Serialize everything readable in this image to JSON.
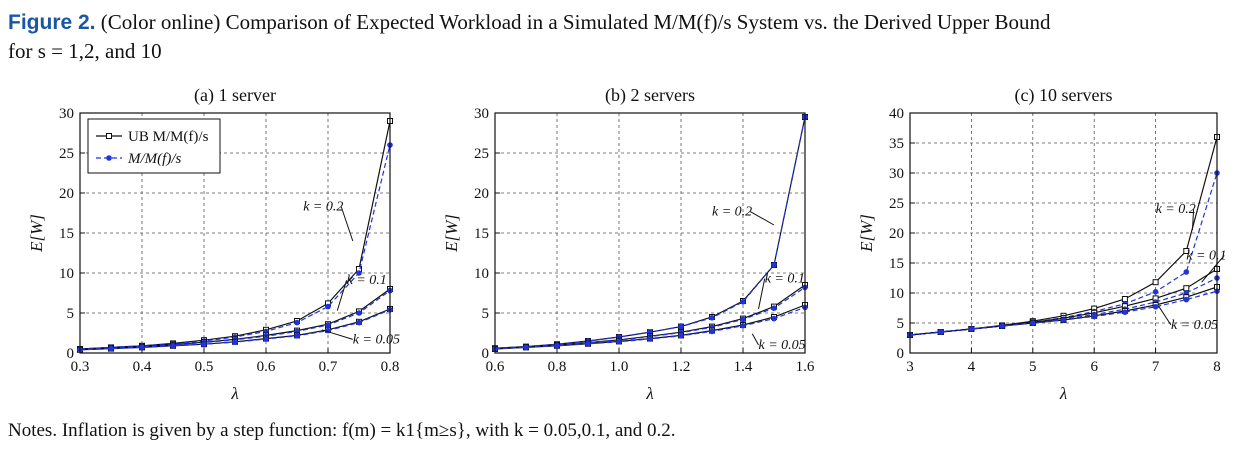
{
  "caption": {
    "figure_label": "Figure 2.",
    "text_line1": " (Color online) Comparison of Expected Workload in a Simulated M/M(f)/s System vs. the Derived Upper Bound",
    "text_line2": "for s = 1,2, and 10"
  },
  "notes": "Notes. Inflation is given by a step function: f(m) = k1{m≥s}, with k = 0.05,0.1, and 0.2.",
  "colors": {
    "ub": "#111111",
    "sim": "#2233dd",
    "grid": "#555555"
  },
  "chart_data": [
    {
      "type": "line",
      "title": "(a) 1 server",
      "xlabel": "λ",
      "ylabel": "E[W]",
      "xlim": [
        0.3,
        0.8
      ],
      "ylim": [
        0,
        30
      ],
      "xticks": [
        0.3,
        0.4,
        0.5,
        0.6,
        0.7,
        0.8
      ],
      "xtick_labels": [
        "0.3",
        "0.4",
        "0.5",
        "0.6",
        "0.7",
        "0.8"
      ],
      "yticks": [
        0,
        5,
        10,
        15,
        20,
        25,
        30
      ],
      "ytick_labels": [
        "0",
        "5",
        "10",
        "15",
        "20",
        "25",
        "30"
      ],
      "grid": true,
      "legend": {
        "position": "top-left",
        "entries": [
          "UB M/M(f)/s",
          "M/M(f)/s"
        ]
      },
      "x": [
        0.3,
        0.35,
        0.4,
        0.45,
        0.5,
        0.55,
        0.6,
        0.65,
        0.7,
        0.75,
        0.8
      ],
      "series": [
        {
          "name": "UB M/M(f)/s",
          "k": "0.2",
          "style": "ub",
          "values": [
            0.5,
            0.7,
            0.9,
            1.2,
            1.6,
            2.1,
            2.9,
            4.0,
            6.2,
            10.5,
            29.0
          ]
        },
        {
          "name": "M/M(f)/s",
          "k": "0.2",
          "style": "sim",
          "values": [
            0.5,
            0.7,
            0.9,
            1.15,
            1.5,
            2.0,
            2.7,
            3.8,
            5.8,
            10.0,
            26.0
          ]
        },
        {
          "name": "UB M/M(f)/s",
          "k": "0.1",
          "style": "ub",
          "values": [
            0.45,
            0.6,
            0.8,
            1.05,
            1.35,
            1.7,
            2.2,
            2.8,
            3.6,
            5.2,
            8.0
          ]
        },
        {
          "name": "M/M(f)/s",
          "k": "0.1",
          "style": "sim",
          "values": [
            0.45,
            0.6,
            0.8,
            1.0,
            1.3,
            1.65,
            2.1,
            2.7,
            3.5,
            5.0,
            7.8
          ]
        },
        {
          "name": "UB M/M(f)/s",
          "k": "0.05",
          "style": "ub",
          "values": [
            0.4,
            0.55,
            0.7,
            0.9,
            1.1,
            1.4,
            1.8,
            2.2,
            2.9,
            3.9,
            5.5
          ]
        },
        {
          "name": "M/M(f)/s",
          "k": "0.05",
          "style": "sim",
          "values": [
            0.4,
            0.55,
            0.7,
            0.9,
            1.1,
            1.35,
            1.75,
            2.15,
            2.8,
            3.8,
            5.4
          ]
        }
      ],
      "annotations": [
        {
          "text": "k = 0.2",
          "x": 0.66,
          "y": 17.8,
          "ax": 0.74,
          "ay": 14.0
        },
        {
          "text": "k = 0.1",
          "x": 0.73,
          "y": 8.6,
          "ax": 0.715,
          "ay": 5.3
        },
        {
          "text": "k = 0.05",
          "x": 0.74,
          "y": 1.2,
          "ax": 0.69,
          "ay": 2.9
        }
      ]
    },
    {
      "type": "line",
      "title": "(b) 2 servers",
      "xlabel": "λ",
      "ylabel": "E[W]",
      "xlim": [
        0.6,
        1.6
      ],
      "ylim": [
        0,
        30
      ],
      "xticks": [
        0.6,
        0.8,
        1.0,
        1.2,
        1.4,
        1.6
      ],
      "xtick_labels": [
        "0.6",
        "0.8",
        "1.0",
        "1.2",
        "1.4",
        "1.6"
      ],
      "yticks": [
        0,
        5,
        10,
        15,
        20,
        25,
        30
      ],
      "ytick_labels": [
        "0",
        "5",
        "10",
        "15",
        "20",
        "25",
        "30"
      ],
      "grid": true,
      "x": [
        0.6,
        0.7,
        0.8,
        0.9,
        1.0,
        1.1,
        1.2,
        1.3,
        1.4,
        1.5,
        1.6
      ],
      "series": [
        {
          "name": "UB M/M(f)/s",
          "k": "0.2",
          "style": "ub",
          "values": [
            0.6,
            0.8,
            1.1,
            1.5,
            2.0,
            2.6,
            3.3,
            4.5,
            6.5,
            11.0,
            29.5
          ]
        },
        {
          "name": "M/M(f)/s",
          "k": "0.2",
          "style": "sim",
          "values": [
            0.6,
            0.8,
            1.1,
            1.5,
            2.0,
            2.6,
            3.3,
            4.4,
            6.4,
            11.0,
            29.5
          ]
        },
        {
          "name": "UB M/M(f)/s",
          "k": "0.1",
          "style": "ub",
          "values": [
            0.55,
            0.75,
            1.0,
            1.3,
            1.65,
            2.1,
            2.6,
            3.3,
            4.3,
            5.8,
            8.5
          ]
        },
        {
          "name": "M/M(f)/s",
          "k": "0.1",
          "style": "sim",
          "values": [
            0.55,
            0.75,
            1.0,
            1.3,
            1.6,
            2.05,
            2.55,
            3.2,
            4.2,
            5.6,
            8.2
          ]
        },
        {
          "name": "UB M/M(f)/s",
          "k": "0.05",
          "style": "ub",
          "values": [
            0.5,
            0.7,
            0.9,
            1.15,
            1.45,
            1.8,
            2.2,
            2.8,
            3.5,
            4.5,
            6.0
          ]
        },
        {
          "name": "M/M(f)/s",
          "k": "0.05",
          "style": "sim",
          "values": [
            0.5,
            0.7,
            0.9,
            1.15,
            1.4,
            1.75,
            2.15,
            2.7,
            3.4,
            4.3,
            5.7
          ]
        }
      ],
      "annotations": [
        {
          "text": "k = 0.2",
          "x": 1.3,
          "y": 17.2,
          "ax": 1.5,
          "ay": 16.0
        },
        {
          "text": "k = 0.1",
          "x": 1.47,
          "y": 8.8,
          "ax": 1.45,
          "ay": 5.5
        },
        {
          "text": "k = 0.05",
          "x": 1.45,
          "y": 0.5,
          "ax": 1.43,
          "ay": 2.4
        }
      ]
    },
    {
      "type": "line",
      "title": "(c) 10 servers",
      "xlabel": "λ",
      "ylabel": "E[W]",
      "xlim": [
        3,
        8
      ],
      "ylim": [
        0,
        40
      ],
      "xticks": [
        3,
        4,
        5,
        6,
        7,
        8
      ],
      "xtick_labels": [
        "3",
        "4",
        "5",
        "6",
        "7",
        "8"
      ],
      "yticks": [
        0,
        5,
        10,
        15,
        20,
        25,
        30,
        35,
        40
      ],
      "ytick_labels": [
        "0",
        "5",
        "10",
        "15",
        "20",
        "25",
        "30",
        "35",
        "40"
      ],
      "grid": true,
      "x": [
        3,
        3.5,
        4,
        4.5,
        5,
        5.5,
        6,
        6.5,
        7,
        7.5,
        8
      ],
      "series": [
        {
          "name": "UB M/M(f)/s",
          "k": "0.2",
          "style": "ub",
          "values": [
            3.0,
            3.5,
            4.0,
            4.6,
            5.3,
            6.2,
            7.4,
            9.0,
            11.8,
            17.0,
            36.0
          ]
        },
        {
          "name": "M/M(f)/s",
          "k": "0.2",
          "style": "sim",
          "values": [
            3.0,
            3.5,
            4.0,
            4.5,
            5.1,
            5.9,
            6.9,
            8.2,
            10.2,
            13.5,
            30.0
          ]
        },
        {
          "name": "UB M/M(f)/s",
          "k": "0.1",
          "style": "ub",
          "values": [
            3.0,
            3.5,
            4.0,
            4.5,
            5.1,
            5.8,
            6.7,
            7.8,
            9.1,
            10.8,
            14.0
          ]
        },
        {
          "name": "M/M(f)/s",
          "k": "0.1",
          "style": "sim",
          "values": [
            3.0,
            3.5,
            4.0,
            4.5,
            5.0,
            5.6,
            6.4,
            7.3,
            8.5,
            10.0,
            12.5
          ]
        },
        {
          "name": "UB M/M(f)/s",
          "k": "0.05",
          "style": "ub",
          "values": [
            3.0,
            3.5,
            4.0,
            4.5,
            5.0,
            5.5,
            6.2,
            7.0,
            8.0,
            9.3,
            11.0
          ]
        },
        {
          "name": "M/M(f)/s",
          "k": "0.05",
          "style": "sim",
          "values": [
            3.0,
            3.5,
            4.0,
            4.5,
            5.0,
            5.5,
            6.1,
            6.8,
            7.7,
            8.9,
            10.3
          ]
        }
      ],
      "annotations": [
        {
          "text": "k = 0.2",
          "x": 7.0,
          "y": 23.3,
          "ax": 7.6,
          "ay": 20.5
        },
        {
          "text": "k = 0.1",
          "x": 7.5,
          "y": 15.6,
          "ax": 7.75,
          "ay": 11.8
        },
        {
          "text": "k = 0.05",
          "x": 7.25,
          "y": 4.0,
          "ax": 7.05,
          "ay": 7.8
        }
      ]
    }
  ]
}
